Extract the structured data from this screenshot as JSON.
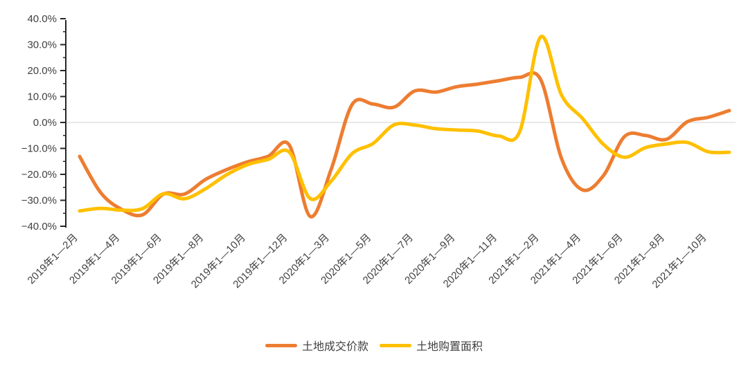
{
  "chart_data": {
    "type": "line",
    "title": "",
    "xlabel": "",
    "ylabel": "",
    "categories": [
      "2019年1—2月",
      "2019年1—3月",
      "2019年1—4月",
      "2019年1—5月",
      "2019年1—6月",
      "2019年1—7月",
      "2019年1—8月",
      "2019年1—9月",
      "2019年1—10月",
      "2019年1—11月",
      "2019年1—12月",
      "2020年1—2月",
      "2020年1—3月",
      "2020年1—4月",
      "2020年1—5月",
      "2020年1—6月",
      "2020年1—7月",
      "2020年1—8月",
      "2020年1—9月",
      "2020年1—10月",
      "2020年1—11月",
      "2020年1—12月",
      "2021年1—2月",
      "2021年1—3月",
      "2021年1—4月",
      "2021年1—5月",
      "2021年1—6月",
      "2021年1—7月",
      "2021年1—8月",
      "2021年1—9月",
      "2021年1—10月",
      "2021年1—11月"
    ],
    "x_label_every": 2,
    "visible_x_tick_labels": [
      "2019年1—2月",
      "2019年1—4月",
      "2019年1—6月",
      "2019年1—8月",
      "2019年1—10月",
      "2019年1—12月",
      "2020年1—3月",
      "2020年1—5月",
      "2020年1—7月",
      "2020年1—9月",
      "2020年1—11月",
      "2021年1—2月",
      "2021年1—4月",
      "2021年1—6月",
      "2021年1—8月",
      "2021年1—10月"
    ],
    "series": [
      {
        "id": "land-transaction-price",
        "name": "土地成交价款",
        "color": "#ED7D31",
        "values": [
          -13.1,
          -27.0,
          -33.5,
          -35.6,
          -27.6,
          -27.6,
          -22.0,
          -18.2,
          -15.2,
          -13.0,
          -8.7,
          -36.2,
          -18.1,
          6.9,
          7.1,
          5.9,
          12.2,
          11.7,
          13.8,
          14.8,
          16.1,
          17.4,
          16.5,
          -14.0,
          -26.0,
          -20.4,
          -5.4,
          -5.0,
          -6.5,
          0.3,
          2.0,
          4.6
        ]
      },
      {
        "id": "land-purchase-area",
        "name": "土地购置面积",
        "color": "#FFC000",
        "values": [
          -34.1,
          -33.1,
          -33.8,
          -33.2,
          -27.5,
          -29.4,
          -25.6,
          -20.2,
          -16.3,
          -14.2,
          -11.4,
          -29.3,
          -22.6,
          -12.0,
          -8.1,
          -0.9,
          -1.0,
          -2.4,
          -2.9,
          -3.3,
          -5.2,
          -3.5,
          33.0,
          10.5,
          1.5,
          -8.5,
          -13.4,
          -9.7,
          -8.3,
          -7.7,
          -11.3,
          -11.5
        ]
      }
    ],
    "ylim": [
      -40,
      40
    ],
    "y_tick_values": [
      40,
      30,
      20,
      10,
      0,
      -10,
      -20,
      -30,
      -40
    ],
    "y_tick_labels": [
      "40.0%",
      "30.0%",
      "20.0%",
      "10.0%",
      "0.0%",
      "−10.0%",
      "−20.0%",
      "−30.0%",
      "−40.0%"
    ],
    "y_minor_tick_step": 5,
    "grid": "horizontal-zero-line-only",
    "legend_position": "bottom-center",
    "colors": {
      "axis": "#262626",
      "grid_line": "#D9D9D9",
      "tick_text": "#404040",
      "background": "#FFFFFF"
    },
    "curve_style": "smooth-spline"
  }
}
